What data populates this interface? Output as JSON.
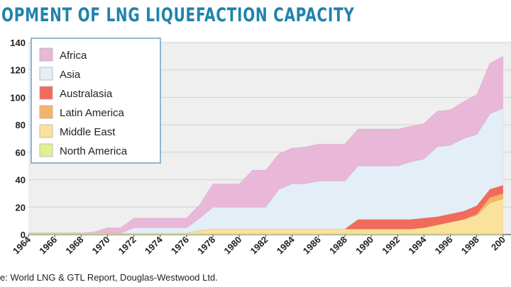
{
  "header": {
    "title": "OPMENT OF LNG LIQUEFACTION CAPACITY"
  },
  "source_note": "e: World LNG & GTL Report, Douglas-Westwood Ltd.",
  "colors": {
    "title": "#1f83ad",
    "Africa": "#e9b7d8",
    "Asia": "#e4eef6",
    "Australasia": "#f26b5a",
    "Latin America": "#f6b46a",
    "Middle East": "#fbe29a",
    "North America": "#e3ef8e",
    "plot_bg": "#efefef"
  },
  "chart_data": {
    "type": "area",
    "stacked": true,
    "x": [
      1964,
      1965,
      1966,
      1967,
      1968,
      1969,
      1970,
      1971,
      1972,
      1973,
      1974,
      1975,
      1976,
      1977,
      1978,
      1979,
      1980,
      1981,
      1982,
      1983,
      1984,
      1985,
      1986,
      1987,
      1988,
      1989,
      1990,
      1991,
      1992,
      1993,
      1994,
      1995,
      1996,
      1997,
      1998,
      1999,
      2000
    ],
    "xticks": [
      "1964",
      "1966",
      "1968",
      "1970",
      "1972",
      "1974",
      "1976",
      "1978",
      "1980",
      "1982",
      "1984",
      "1986",
      "1988",
      "1990",
      "1992",
      "1994",
      "1996",
      "1998",
      "200"
    ],
    "yticks": [
      "0",
      "20",
      "40",
      "60",
      "80",
      "100",
      "120",
      "140"
    ],
    "ylim": [
      0,
      140
    ],
    "legend_position": "top-left",
    "grid": true,
    "series": [
      {
        "name": "North America",
        "values": [
          1,
          1,
          1,
          1,
          1,
          1,
          1,
          1,
          1,
          1,
          1,
          1,
          1,
          1,
          1,
          1,
          1,
          1,
          1,
          1,
          1,
          1,
          1,
          1,
          1,
          1,
          1,
          1,
          1,
          1,
          1,
          1,
          1,
          1,
          1,
          1,
          1
        ]
      },
      {
        "name": "Middle East",
        "values": [
          0,
          0,
          0,
          0,
          0,
          0,
          0,
          0,
          0,
          0,
          0,
          0,
          0,
          2,
          3,
          3,
          3,
          3,
          3,
          3,
          3,
          3,
          3,
          3,
          3,
          3,
          3,
          3,
          3,
          3,
          4,
          6,
          8,
          10,
          13,
          22,
          25
        ]
      },
      {
        "name": "Latin America",
        "values": [
          0,
          0,
          0,
          0,
          0,
          0,
          0,
          0,
          0,
          0,
          0,
          0,
          0,
          0,
          0,
          0,
          0,
          0,
          0,
          0,
          0,
          0,
          0,
          0,
          0,
          0,
          0,
          0,
          0,
          0,
          0,
          0,
          0,
          0,
          1,
          4,
          4
        ]
      },
      {
        "name": "Australasia",
        "values": [
          0,
          0,
          0,
          0,
          0,
          0,
          0,
          0,
          0,
          0,
          0,
          0,
          0,
          0,
          0,
          0,
          0,
          0,
          0,
          0,
          0,
          0,
          0,
          0,
          0,
          7,
          7,
          7,
          7,
          7,
          7,
          6,
          6,
          6,
          6,
          6,
          6
        ]
      },
      {
        "name": "Asia",
        "values": [
          0,
          0,
          0,
          0,
          0,
          0,
          0,
          0,
          4,
          4,
          4,
          4,
          4,
          9,
          16,
          16,
          16,
          16,
          16,
          29,
          33,
          33,
          35,
          35,
          35,
          39,
          39,
          39,
          39,
          42,
          43,
          51,
          50,
          53,
          52,
          55,
          56
        ]
      },
      {
        "name": "Africa",
        "values": [
          0,
          0,
          0,
          0,
          0,
          1,
          4,
          4,
          7,
          7,
          7,
          7,
          7,
          10,
          17,
          17,
          17,
          27,
          27,
          26,
          26,
          27,
          27,
          27,
          27,
          27,
          27,
          27,
          27,
          26,
          26,
          26,
          26,
          27,
          29,
          37,
          38
        ]
      }
    ]
  }
}
